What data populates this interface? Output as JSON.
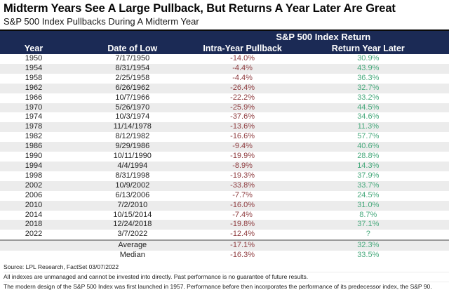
{
  "title": "Midterm Years See A Large Pullback, But Returns A Year Later Are Great",
  "subtitle": "S&P 500 Index Pullbacks During A Midterm Year",
  "chart_data": {
    "type": "table",
    "title": "Midterm Years See A Large Pullback, But Returns A Year Later Are Great",
    "subtitle": "S&P 500 Index Pullbacks During A Midterm Year",
    "span_header": "S&P 500 Index Return",
    "columns": [
      "Year",
      "Date of Low",
      "Intra-Year Pullback",
      "Return Year Later"
    ],
    "rows": [
      {
        "year": "1950",
        "date_of_low": "7/17/1950",
        "intra_year_pullback": "-14.0%",
        "return_year_later": "30.9%"
      },
      {
        "year": "1954",
        "date_of_low": "8/31/1954",
        "intra_year_pullback": "-4.4%",
        "return_year_later": "43.9%"
      },
      {
        "year": "1958",
        "date_of_low": "2/25/1958",
        "intra_year_pullback": "-4.4%",
        "return_year_later": "36.3%"
      },
      {
        "year": "1962",
        "date_of_low": "6/26/1962",
        "intra_year_pullback": "-26.4%",
        "return_year_later": "32.7%"
      },
      {
        "year": "1966",
        "date_of_low": "10/7/1966",
        "intra_year_pullback": "-22.2%",
        "return_year_later": "33.2%"
      },
      {
        "year": "1970",
        "date_of_low": "5/26/1970",
        "intra_year_pullback": "-25.9%",
        "return_year_later": "44.5%"
      },
      {
        "year": "1974",
        "date_of_low": "10/3/1974",
        "intra_year_pullback": "-37.6%",
        "return_year_later": "34.6%"
      },
      {
        "year": "1978",
        "date_of_low": "11/14/1978",
        "intra_year_pullback": "-13.6%",
        "return_year_later": "11.3%"
      },
      {
        "year": "1982",
        "date_of_low": "8/12/1982",
        "intra_year_pullback": "-16.6%",
        "return_year_later": "57.7%"
      },
      {
        "year": "1986",
        "date_of_low": "9/29/1986",
        "intra_year_pullback": "-9.4%",
        "return_year_later": "40.6%"
      },
      {
        "year": "1990",
        "date_of_low": "10/11/1990",
        "intra_year_pullback": "-19.9%",
        "return_year_later": "28.8%"
      },
      {
        "year": "1994",
        "date_of_low": "4/4/1994",
        "intra_year_pullback": "-8.9%",
        "return_year_later": "14.3%"
      },
      {
        "year": "1998",
        "date_of_low": "8/31/1998",
        "intra_year_pullback": "-19.3%",
        "return_year_later": "37.9%"
      },
      {
        "year": "2002",
        "date_of_low": "10/9/2002",
        "intra_year_pullback": "-33.8%",
        "return_year_later": "33.7%"
      },
      {
        "year": "2006",
        "date_of_low": "6/13/2006",
        "intra_year_pullback": "-7.7%",
        "return_year_later": "24.5%"
      },
      {
        "year": "2010",
        "date_of_low": "7/2/2010",
        "intra_year_pullback": "-16.0%",
        "return_year_later": "31.0%"
      },
      {
        "year": "2014",
        "date_of_low": "10/15/2014",
        "intra_year_pullback": "-7.4%",
        "return_year_later": "8.7%"
      },
      {
        "year": "2018",
        "date_of_low": "12/24/2018",
        "intra_year_pullback": "-19.8%",
        "return_year_later": "37.1%"
      },
      {
        "year": "2022",
        "date_of_low": "3/7/2022",
        "intra_year_pullback": "-12.4%",
        "return_year_later": "?"
      }
    ],
    "summary_rows": [
      {
        "label": "Average",
        "intra_year_pullback": "-17.1%",
        "return_year_later": "32.3%"
      },
      {
        "label": "Median",
        "intra_year_pullback": "-16.3%",
        "return_year_later": "33.5%"
      }
    ]
  },
  "footer": {
    "source": "Source: LPL Research, FactSet 03/07/2022",
    "disclaimer1": "All indexes are unmanaged and cannot be invested into directly. Past performance is no guarantee of future results.",
    "disclaimer2": "The modern design of the S&P 500 Index was first launched in 1957. Performance before then incorporates the performance of its predecessor index, the S&P 90."
  },
  "colors": {
    "header_bg": "#1b2a55",
    "negative_text": "#8e3b3e",
    "positive_text": "#47a97c",
    "row_alt_bg": "#ececec",
    "title_text": "#060606"
  }
}
